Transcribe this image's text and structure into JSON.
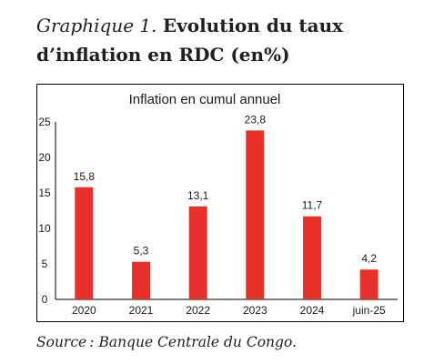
{
  "heading": {
    "lead": "Graphique 1.",
    "main": "Evolution du taux d’inflation en RDC (en%)"
  },
  "chart_data": {
    "type": "bar",
    "title": "Inflation en cumul annuel",
    "categories": [
      "2020",
      "2021",
      "2022",
      "2023",
      "2024",
      "juin-25"
    ],
    "values": [
      15.8,
      5.3,
      13.1,
      23.8,
      11.7,
      4.2
    ],
    "value_labels": [
      "15,8",
      "5,3",
      "13,1",
      "23,8",
      "11,7",
      "4,2"
    ],
    "ylim": [
      0,
      25
    ],
    "yticks": [
      "0",
      "5",
      "10",
      "15",
      "20",
      "25"
    ],
    "xlabel": "",
    "ylabel": "",
    "grid": false,
    "bar_color": "#e63029"
  },
  "source": "Source : Banque Centrale du Congo."
}
